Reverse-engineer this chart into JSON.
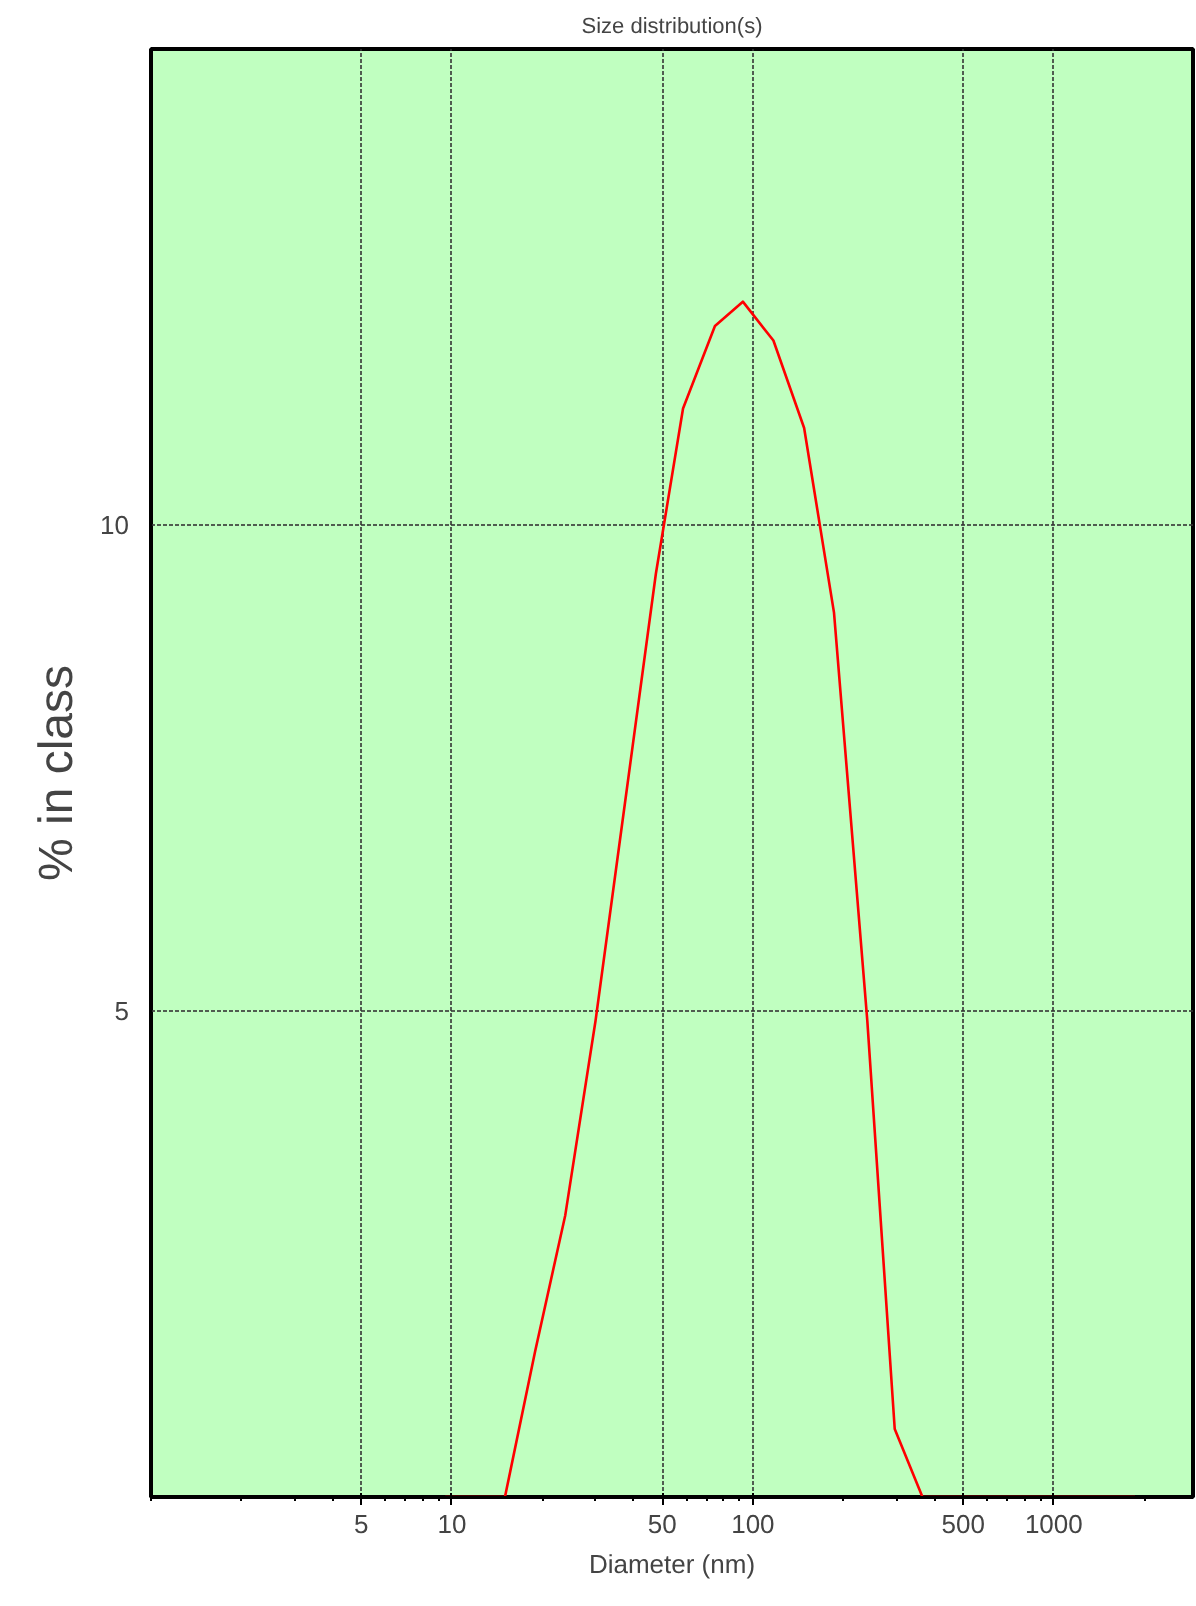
{
  "chart_data": {
    "type": "line",
    "title": "Size distribution(s)",
    "xlabel": "Diameter (nm)",
    "ylabel": "% in class",
    "x": [
      9.5,
      15,
      18.9,
      23.8,
      30,
      37.8,
      47.6,
      58.6,
      74.8,
      92.6,
      117,
      148,
      186,
      240,
      296,
      366,
      1860
    ],
    "series": [
      {
        "color": "#ff0000",
        "values": [
          0,
          0,
          1.5,
          2.9,
          4.9,
          7.2,
          9.5,
          11.2,
          12.05,
          12.3,
          11.9,
          11.0,
          9.1,
          4.9,
          0.7,
          0,
          0
        ]
      }
    ],
    "log": "x",
    "xlim": [
      1,
      2900
    ],
    "ylim": [
      0,
      14.9
    ],
    "xticks": [
      5,
      10,
      50,
      100,
      500,
      1000
    ],
    "yticks": [
      5,
      10
    ],
    "grid": true,
    "marker": "none",
    "line_style": "solid"
  }
}
